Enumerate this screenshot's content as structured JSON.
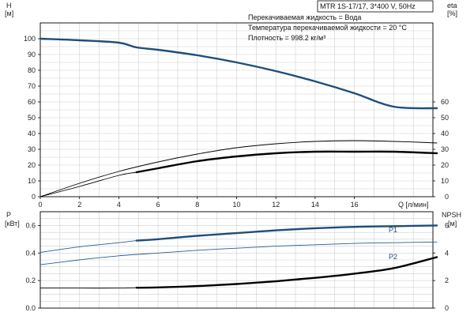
{
  "title": "MTR 1S-17/17, 3*400 V, 50Hz",
  "info_lines": [
    "Перекачиваемая жидкость = Вода",
    "Температура перекачиваемой жидкости = 20 °C",
    "Плотность = 998.2 кг/м³"
  ],
  "colors": {
    "grid": "#cfcfcf",
    "axis": "#000000",
    "curve_blue": "#1f4e79",
    "curve_black": "#000000",
    "thin_blue": "#2a5d8f"
  },
  "chart_data": [
    {
      "type": "line",
      "panel": "upper",
      "x_label": "Q [л/мин]",
      "x_ticks": [
        "0",
        "2",
        "4",
        "6",
        "8",
        "10",
        "12",
        "14",
        "16"
      ],
      "xlim": [
        0,
        20
      ],
      "left_axis": {
        "label_top": "H",
        "label_unit": "[м]",
        "ylim": [
          0,
          110
        ],
        "ticks": [
          "0",
          "10",
          "20",
          "30",
          "40",
          "50",
          "60",
          "70",
          "80",
          "90",
          "100"
        ]
      },
      "right_axis": {
        "label_top": "eta",
        "label_unit": "[%]",
        "ylim": [
          0,
          110
        ],
        "ticks": [
          "0",
          "10",
          "20",
          "30",
          "40",
          "50",
          "60"
        ]
      },
      "grid": true,
      "series": [
        {
          "key": "H",
          "axis": "left",
          "style": "thick-blue",
          "x": [
            0,
            2,
            4,
            4.9,
            6,
            8,
            10,
            12,
            14,
            16,
            18,
            20.2
          ],
          "y": [
            100,
            99,
            97.5,
            94.5,
            93,
            89.5,
            85,
            79.5,
            73,
            65.5,
            57,
            56
          ]
        },
        {
          "key": "eta-full",
          "axis": "right",
          "style": "thin-black",
          "x": [
            0,
            2,
            4,
            6,
            8,
            10,
            12,
            14,
            16,
            18,
            20.2
          ],
          "y": [
            0,
            8.5,
            16,
            22,
            27,
            31,
            33.5,
            35,
            35.5,
            35,
            34
          ]
        },
        {
          "key": "eta-op",
          "axis": "right",
          "style": "thin-black",
          "x": [
            0,
            2,
            4,
            4.9,
            6,
            8,
            10,
            12,
            14,
            16,
            18,
            20.2
          ],
          "y": [
            0,
            6.5,
            13.5,
            15.5,
            18,
            22.5,
            25.5,
            27.5,
            28.5,
            28.5,
            28.5,
            27.5
          ]
        },
        {
          "key": "eta-op-thick",
          "axis": "right",
          "style": "thick-black",
          "x": [
            4.9,
            6,
            8,
            10,
            12,
            14,
            16,
            18,
            20.2
          ],
          "y": [
            15.5,
            18,
            22.5,
            25.5,
            27.5,
            28.5,
            28.5,
            28.5,
            27.5
          ]
        }
      ]
    },
    {
      "type": "line",
      "panel": "lower",
      "xlim": [
        0,
        20
      ],
      "left_axis": {
        "label_top": "P",
        "label_unit": "[кВт]",
        "ylim": [
          0,
          0.7
        ],
        "ticks": [
          "0.0",
          "0.2",
          "0.4",
          "0.6"
        ]
      },
      "right_axis": {
        "label_top": "NPSH",
        "label_unit": "[м]",
        "ylim": [
          0,
          7
        ],
        "ticks": [
          "0",
          "2",
          "4",
          "6"
        ]
      },
      "grid": true,
      "series": [
        {
          "key": "P1",
          "name": "P1",
          "axis": "left",
          "style": "thin-blue",
          "x": [
            0,
            2,
            4,
            4.9,
            6,
            8,
            10,
            12,
            14,
            16,
            18,
            20.2
          ],
          "y": [
            0.405,
            0.445,
            0.475,
            0.49,
            0.5,
            0.525,
            0.545,
            0.565,
            0.58,
            0.59,
            0.595,
            0.6
          ]
        },
        {
          "key": "P1-thick",
          "axis": "left",
          "style": "thick-blue",
          "x": [
            4.9,
            6,
            8,
            10,
            12,
            14,
            16,
            18,
            20.2
          ],
          "y": [
            0.49,
            0.5,
            0.525,
            0.545,
            0.565,
            0.58,
            0.59,
            0.595,
            0.6
          ]
        },
        {
          "key": "P2",
          "name": "P2",
          "axis": "left",
          "style": "thin-blue",
          "x": [
            0,
            2,
            4,
            6,
            8,
            10,
            12,
            14,
            16,
            18,
            20.2
          ],
          "y": [
            0.315,
            0.35,
            0.38,
            0.4,
            0.42,
            0.435,
            0.45,
            0.46,
            0.47,
            0.475,
            0.48
          ]
        },
        {
          "key": "NPSH",
          "axis": "right",
          "style": "thin-black",
          "x": [
            0,
            2,
            4,
            4.9,
            6,
            8,
            10,
            12,
            14,
            16,
            18,
            20.2
          ],
          "y": [
            1.45,
            1.45,
            1.45,
            1.48,
            1.5,
            1.6,
            1.75,
            1.95,
            2.2,
            2.5,
            2.9,
            3.7
          ]
        },
        {
          "key": "NPSH-thick",
          "axis": "right",
          "style": "thick-black",
          "x": [
            4.9,
            6,
            8,
            10,
            12,
            14,
            16,
            18,
            20.2
          ],
          "y": [
            1.48,
            1.5,
            1.6,
            1.75,
            1.95,
            2.2,
            2.5,
            2.9,
            3.7
          ]
        }
      ]
    }
  ]
}
